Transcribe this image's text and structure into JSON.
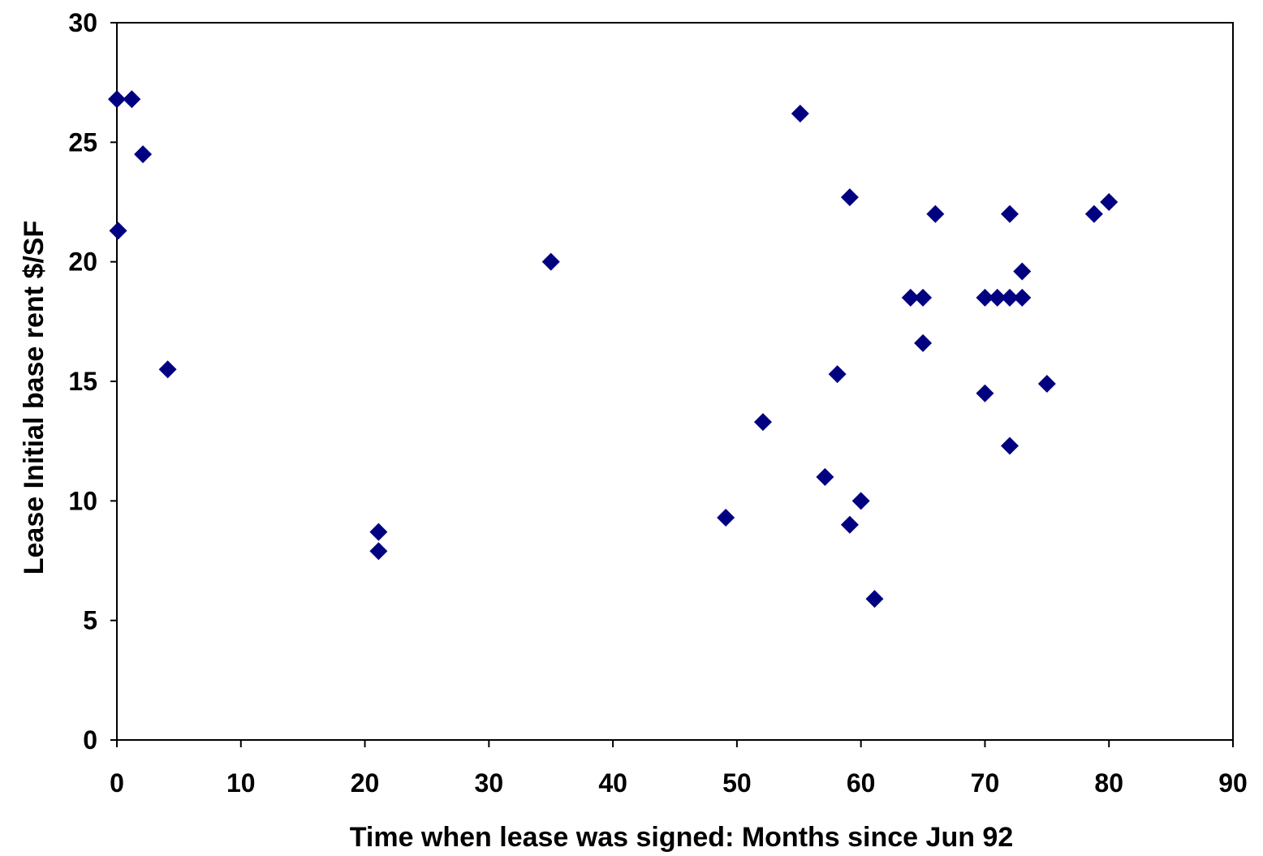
{
  "chart_data": {
    "type": "scatter",
    "title": "",
    "xlabel": "Time when lease was signed: Months since Jun 92",
    "ylabel": "Lease Initial base rent $/SF",
    "xlim": [
      0,
      90
    ],
    "ylim": [
      0,
      30
    ],
    "x_ticks": [
      0,
      10,
      20,
      30,
      40,
      50,
      60,
      70,
      80,
      90
    ],
    "y_ticks": [
      0,
      5,
      10,
      15,
      20,
      25,
      30
    ],
    "grid": false,
    "legend": "none",
    "marker": "diamond",
    "marker_color": "#000080",
    "series": [
      {
        "points": [
          [
            0,
            26.8
          ],
          [
            1.2,
            26.8
          ],
          [
            2.1,
            24.5
          ],
          [
            0.1,
            21.3
          ],
          [
            4.1,
            15.5
          ],
          [
            21.1,
            8.7
          ],
          [
            21.1,
            7.9
          ],
          [
            35,
            20
          ],
          [
            49.1,
            9.3
          ],
          [
            52.1,
            13.3
          ],
          [
            55.1,
            26.2
          ],
          [
            57.1,
            11
          ],
          [
            58.1,
            15.3
          ],
          [
            59.1,
            22.7
          ],
          [
            59.1,
            9
          ],
          [
            60,
            10
          ],
          [
            61.1,
            5.9
          ],
          [
            64,
            18.5
          ],
          [
            65,
            18.5
          ],
          [
            65,
            16.6
          ],
          [
            66,
            22
          ],
          [
            70,
            18.5
          ],
          [
            70,
            14.5
          ],
          [
            71,
            18.5
          ],
          [
            72,
            22
          ],
          [
            72,
            18.5
          ],
          [
            72,
            12.3
          ],
          [
            73,
            18.5
          ],
          [
            73,
            19.6
          ],
          [
            75,
            14.9
          ],
          [
            78.8,
            22
          ],
          [
            80,
            22.5
          ]
        ]
      }
    ]
  }
}
